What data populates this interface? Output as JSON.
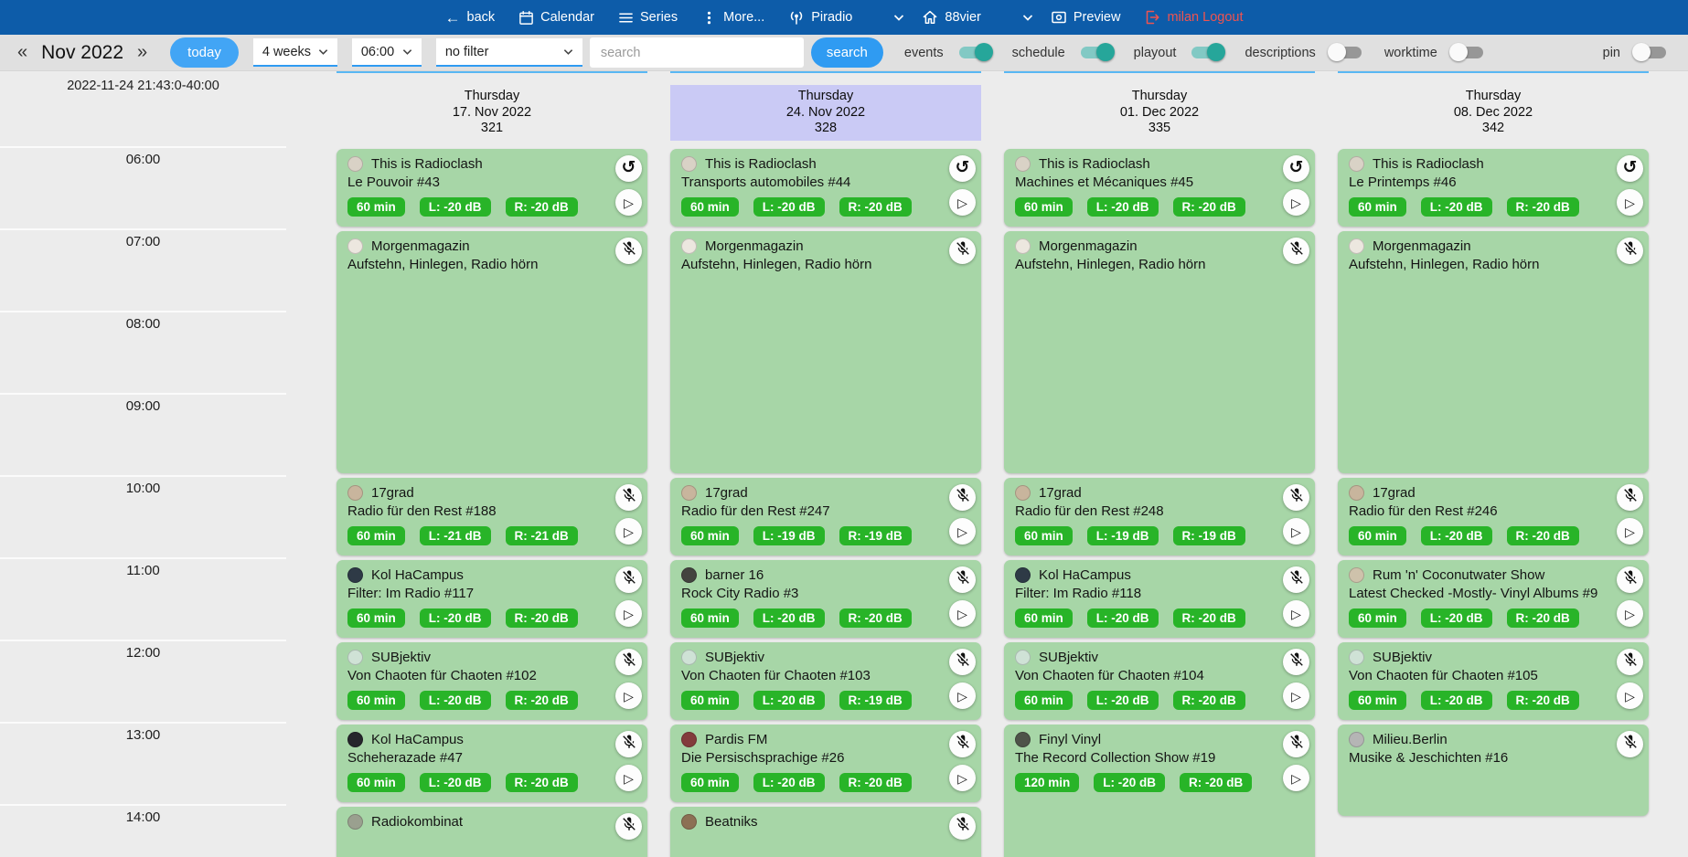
{
  "top_nav": {
    "items": [
      {
        "id": "back",
        "icon": "arrow-left",
        "label": "back"
      },
      {
        "id": "calendar",
        "icon": "calendar",
        "label": "Calendar"
      },
      {
        "id": "series",
        "icon": "list",
        "label": "Series"
      },
      {
        "id": "more",
        "icon": "more-vert",
        "label": "More..."
      },
      {
        "id": "piradio",
        "icon": "antenna",
        "label": "Piradio",
        "dropdown": true
      },
      {
        "id": "88vier",
        "icon": "home",
        "label": "88vier",
        "dropdown": true
      },
      {
        "id": "preview",
        "icon": "preview",
        "label": "Preview"
      },
      {
        "id": "logout",
        "icon": "logout",
        "label": "milan Logout",
        "color": "#ef5350"
      }
    ]
  },
  "toolbar": {
    "prev_label": "«",
    "month_label": "Nov 2022",
    "next_label": "»",
    "today_button": "today",
    "range_select": {
      "value": "4 weeks"
    },
    "start_time_select": {
      "value": "06:00"
    },
    "filter_select": {
      "value": "no filter"
    },
    "search": {
      "placeholder": "search",
      "value": "",
      "button": "search"
    },
    "toggles": [
      {
        "id": "events",
        "label": "events",
        "on": true
      },
      {
        "id": "schedule",
        "label": "schedule",
        "on": true
      },
      {
        "id": "playout",
        "label": "playout",
        "on": true
      },
      {
        "id": "descriptions",
        "label": "descriptions",
        "on": false
      },
      {
        "id": "worktime",
        "label": "worktime",
        "on": false
      },
      {
        "id": "pin",
        "label": "pin",
        "on": false,
        "align_right": true
      }
    ]
  },
  "calendar": {
    "now_label": "2022-11-24 21:43:0-40:00",
    "hours": [
      "06:00",
      "07:00",
      "08:00",
      "09:00",
      "10:00",
      "11:00",
      "12:00",
      "13:00",
      "14:00"
    ],
    "columns": [
      {
        "weekday": "Thursday",
        "date": "17. Nov 2022",
        "day_number": "321",
        "current": false,
        "events": [
          {
            "title": "This is Radioclash",
            "subtitle": "Le Pouvoir #43",
            "start": "06:00",
            "duration_min": 60,
            "badges": [
              "60 min",
              "L: -20 dB",
              "R: -20 dB"
            ],
            "icons": [
              "repeat",
              "play"
            ],
            "avatar_color": "#d9d2c6"
          },
          {
            "title": "Morgenmagazin",
            "subtitle": "Aufstehn, Hinlegen, Radio hörn",
            "start": "07:00",
            "duration_min": 180,
            "badges": [],
            "icons": [
              "mic-off"
            ],
            "avatar_color": "#ece7df"
          },
          {
            "title": "17grad",
            "subtitle": "Radio für den Rest #188",
            "start": "10:00",
            "duration_min": 60,
            "badges": [
              "60 min",
              "L: -21 dB",
              "R: -21 dB"
            ],
            "icons": [
              "mic-off",
              "play"
            ],
            "avatar_color": "#c8b59d"
          },
          {
            "title": "Kol HaCampus",
            "subtitle": "Filter: Im Radio #117",
            "start": "11:00",
            "duration_min": 60,
            "badges": [
              "60 min",
              "L: -20 dB",
              "R: -20 dB"
            ],
            "icons": [
              "mic-off",
              "play"
            ],
            "avatar_color": "#2e3a46"
          },
          {
            "title": "SUBjektiv",
            "subtitle": "Von Chaoten für Chaoten #102",
            "start": "12:00",
            "duration_min": 60,
            "badges": [
              "60 min",
              "L: -20 dB",
              "R: -20 dB"
            ],
            "icons": [
              "mic-off",
              "play"
            ],
            "avatar_color": "#cfe2d6"
          },
          {
            "title": "Kol HaCampus",
            "subtitle": "Scheherazade #47",
            "start": "13:00",
            "duration_min": 60,
            "badges": [
              "60 min",
              "L: -20 dB",
              "R: -20 dB"
            ],
            "icons": [
              "mic-off",
              "play"
            ],
            "avatar_color": "#26262c"
          },
          {
            "title": "Radiokombinat",
            "subtitle": "",
            "start": "14:00",
            "duration_min": 60,
            "badges": [],
            "icons": [
              "mic-off"
            ],
            "avatar_color": "#9aa08f"
          }
        ]
      },
      {
        "weekday": "Thursday",
        "date": "24. Nov 2022",
        "day_number": "328",
        "current": true,
        "events": [
          {
            "title": "This is Radioclash",
            "subtitle": "Transports automobiles #44",
            "start": "06:00",
            "duration_min": 60,
            "badges": [
              "60 min",
              "L: -20 dB",
              "R: -20 dB"
            ],
            "icons": [
              "repeat",
              "play"
            ],
            "avatar_color": "#d9d2c6"
          },
          {
            "title": "Morgenmagazin",
            "subtitle": "Aufstehn, Hinlegen, Radio hörn",
            "start": "07:00",
            "duration_min": 180,
            "badges": [],
            "icons": [
              "mic-off"
            ],
            "avatar_color": "#ece7df"
          },
          {
            "title": "17grad",
            "subtitle": "Radio für den Rest #247",
            "start": "10:00",
            "duration_min": 60,
            "badges": [
              "60 min",
              "L: -19 dB",
              "R: -19 dB"
            ],
            "icons": [
              "mic-off",
              "play"
            ],
            "avatar_color": "#c8b59d"
          },
          {
            "title": "barner 16",
            "subtitle": "Rock City Radio #3",
            "start": "11:00",
            "duration_min": 60,
            "badges": [
              "60 min",
              "L: -20 dB",
              "R: -20 dB"
            ],
            "icons": [
              "mic-off",
              "play"
            ],
            "avatar_color": "#43433f"
          },
          {
            "title": "SUBjektiv",
            "subtitle": "Von Chaoten für Chaoten #103",
            "start": "12:00",
            "duration_min": 60,
            "badges": [
              "60 min",
              "L: -20 dB",
              "R: -19 dB"
            ],
            "icons": [
              "mic-off",
              "play"
            ],
            "avatar_color": "#cfe2d6"
          },
          {
            "title": "Pardis FM",
            "subtitle": "Die Persischsprachige #26",
            "start": "13:00",
            "duration_min": 60,
            "badges": [
              "60 min",
              "L: -20 dB",
              "R: -20 dB"
            ],
            "icons": [
              "mic-off",
              "play"
            ],
            "avatar_color": "#833c3c"
          },
          {
            "title": "Beatniks",
            "subtitle": "",
            "start": "14:00",
            "duration_min": 60,
            "badges": [],
            "icons": [
              "mic-off"
            ],
            "avatar_color": "#8c7054"
          }
        ]
      },
      {
        "weekday": "Thursday",
        "date": "01. Dec 2022",
        "day_number": "335",
        "current": false,
        "events": [
          {
            "title": "This is Radioclash",
            "subtitle": "Machines et Mécaniques #45",
            "start": "06:00",
            "duration_min": 60,
            "badges": [
              "60 min",
              "L: -20 dB",
              "R: -20 dB"
            ],
            "icons": [
              "repeat",
              "play"
            ],
            "avatar_color": "#d9d2c6"
          },
          {
            "title": "Morgenmagazin",
            "subtitle": "Aufstehn, Hinlegen, Radio hörn",
            "start": "07:00",
            "duration_min": 180,
            "badges": [],
            "icons": [
              "mic-off"
            ],
            "avatar_color": "#ece7df"
          },
          {
            "title": "17grad",
            "subtitle": "Radio für den Rest #248",
            "start": "10:00",
            "duration_min": 60,
            "badges": [
              "60 min",
              "L: -19 dB",
              "R: -19 dB"
            ],
            "icons": [
              "mic-off",
              "play"
            ],
            "avatar_color": "#c8b59d"
          },
          {
            "title": "Kol HaCampus",
            "subtitle": "Filter: Im Radio #118",
            "start": "11:00",
            "duration_min": 60,
            "badges": [
              "60 min",
              "L: -20 dB",
              "R: -20 dB"
            ],
            "icons": [
              "mic-off",
              "play"
            ],
            "avatar_color": "#2e3a46"
          },
          {
            "title": "SUBjektiv",
            "subtitle": "Von Chaoten für Chaoten #104",
            "start": "12:00",
            "duration_min": 60,
            "badges": [
              "60 min",
              "L: -20 dB",
              "R: -20 dB"
            ],
            "icons": [
              "mic-off",
              "play"
            ],
            "avatar_color": "#cfe2d6"
          },
          {
            "title": "Finyl Vinyl",
            "subtitle": "The Record Collection Show #19",
            "start": "13:00",
            "duration_min": 120,
            "badges": [
              "120 min",
              "L: -20 dB",
              "R: -20 dB"
            ],
            "icons": [
              "mic-off",
              "play"
            ],
            "avatar_color": "#4e5349"
          }
        ]
      },
      {
        "weekday": "Thursday",
        "date": "08. Dec 2022",
        "day_number": "342",
        "current": false,
        "events": [
          {
            "title": "This is Radioclash",
            "subtitle": "Le Printemps #46",
            "start": "06:00",
            "duration_min": 60,
            "badges": [
              "60 min",
              "L: -20 dB",
              "R: -20 dB"
            ],
            "icons": [
              "repeat",
              "play"
            ],
            "avatar_color": "#d9d2c6"
          },
          {
            "title": "Morgenmagazin",
            "subtitle": "Aufstehn, Hinlegen, Radio hörn",
            "start": "07:00",
            "duration_min": 180,
            "badges": [],
            "icons": [
              "mic-off"
            ],
            "avatar_color": "#ece7df"
          },
          {
            "title": "17grad",
            "subtitle": "Radio für den Rest #246",
            "start": "10:00",
            "duration_min": 60,
            "badges": [
              "60 min",
              "L: -20 dB",
              "R: -20 dB"
            ],
            "icons": [
              "mic-off",
              "play"
            ],
            "avatar_color": "#c8b59d"
          },
          {
            "title": "Rum 'n' Coconutwater Show",
            "subtitle": "Latest Checked -Mostly- Vinyl Albums #9",
            "start": "11:00",
            "duration_min": 60,
            "badges": [
              "60 min",
              "L: -20 dB",
              "R: -20 dB"
            ],
            "icons": [
              "mic-off",
              "play"
            ],
            "avatar_color": "#cec2ab"
          },
          {
            "title": "SUBjektiv",
            "subtitle": "Von Chaoten für Chaoten #105",
            "start": "12:00",
            "duration_min": 60,
            "badges": [
              "60 min",
              "L: -20 dB",
              "R: -20 dB"
            ],
            "icons": [
              "mic-off",
              "play"
            ],
            "avatar_color": "#cfe2d6"
          },
          {
            "title": "Milieu.Berlin",
            "subtitle": "Musike & Jeschichten #16",
            "start": "13:00",
            "duration_min": 70,
            "badges": [],
            "icons": [
              "mic-off"
            ],
            "avatar_color": "#b5b5b5"
          }
        ]
      }
    ]
  },
  "colors": {
    "nav_blue": "#0d5ca9",
    "accent_blue": "#42a5f5",
    "event_green": "#a7d6a7",
    "badge_green": "#28b428",
    "current_day_lavender": "#cacaf5",
    "column_top_border": "#59b7f3",
    "toggle_on_teal": "#26a69a",
    "logout_red": "#ef5350"
  }
}
